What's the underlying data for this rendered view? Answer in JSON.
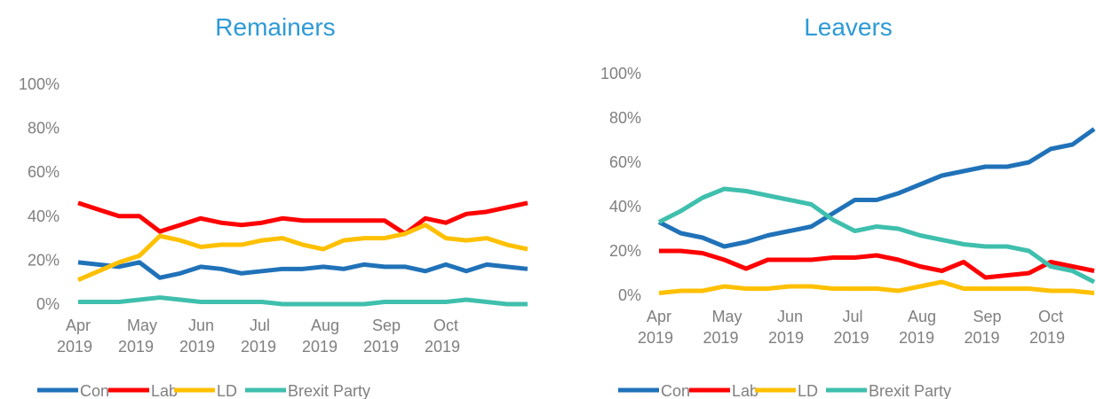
{
  "chart_data": [
    {
      "type": "line",
      "title": "Remainers",
      "categories": [
        "Apr 2019",
        null,
        null,
        "May 2019",
        null,
        null,
        "Jun 2019",
        null,
        null,
        "Jul 2019",
        null,
        null,
        "Aug 2019",
        null,
        null,
        "Sep 2019",
        null,
        null,
        "Oct 2019",
        null,
        null,
        null,
        null
      ],
      "ylim": [
        0,
        100
      ],
      "yticks": [
        {
          "value": 0,
          "label": "0%"
        },
        {
          "value": 20,
          "label": "20%"
        },
        {
          "value": 40,
          "label": "40%"
        },
        {
          "value": 60,
          "label": "60%"
        },
        {
          "value": 80,
          "label": "80%"
        },
        {
          "value": 100,
          "label": "100%"
        }
      ],
      "legend": "bottom",
      "series": [
        {
          "name": "Con",
          "color": "#2072b8",
          "values": [
            19,
            18,
            17,
            19,
            12,
            14,
            17,
            16,
            14,
            15,
            16,
            16,
            17,
            16,
            18,
            17,
            17,
            15,
            18,
            15,
            18,
            17,
            16
          ]
        },
        {
          "name": "Lab",
          "color": "#ff0000",
          "values": [
            46,
            43,
            40,
            40,
            33,
            36,
            39,
            37,
            36,
            37,
            39,
            38,
            38,
            38,
            38,
            38,
            32,
            39,
            37,
            41,
            42,
            44,
            46
          ]
        },
        {
          "name": "LD",
          "color": "#ffc000",
          "values": [
            11,
            15,
            19,
            22,
            31,
            29,
            26,
            27,
            27,
            29,
            30,
            27,
            25,
            29,
            30,
            30,
            32,
            36,
            30,
            29,
            30,
            27,
            25
          ]
        },
        {
          "name": "Brexit Party",
          "color": "#3fbfad",
          "values": [
            1,
            1,
            1,
            2,
            3,
            2,
            1,
            1,
            1,
            1,
            0,
            0,
            0,
            0,
            0,
            1,
            1,
            1,
            1,
            2,
            1,
            0,
            0
          ]
        }
      ]
    },
    {
      "type": "line",
      "title": "Leavers",
      "categories": [
        "Apr 2019",
        null,
        null,
        "May 2019",
        null,
        null,
        "Jun 2019",
        null,
        null,
        "Jul 2019",
        null,
        null,
        "Aug 2019",
        null,
        null,
        "Sep 2019",
        null,
        null,
        "Oct 2019",
        null,
        null
      ],
      "ylim": [
        0,
        100
      ],
      "yticks": [
        {
          "value": 0,
          "label": "0%"
        },
        {
          "value": 20,
          "label": "20%"
        },
        {
          "value": 40,
          "label": "40%"
        },
        {
          "value": 60,
          "label": "60%"
        },
        {
          "value": 80,
          "label": "80%"
        },
        {
          "value": 100,
          "label": "100%"
        }
      ],
      "legend": "bottom",
      "series": [
        {
          "name": "Con",
          "color": "#2072b8",
          "values": [
            33,
            28,
            26,
            22,
            24,
            27,
            29,
            31,
            37,
            43,
            43,
            46,
            50,
            54,
            56,
            58,
            58,
            60,
            66,
            68,
            75
          ]
        },
        {
          "name": "Lab",
          "color": "#ff0000",
          "values": [
            20,
            20,
            19,
            16,
            12,
            16,
            16,
            16,
            17,
            17,
            18,
            16,
            13,
            11,
            15,
            8,
            9,
            10,
            15,
            13,
            11
          ]
        },
        {
          "name": "LD",
          "color": "#ffc000",
          "values": [
            1,
            2,
            2,
            4,
            3,
            3,
            4,
            4,
            3,
            3,
            3,
            2,
            4,
            6,
            3,
            3,
            3,
            3,
            2,
            2,
            1
          ]
        },
        {
          "name": "Brexit Party",
          "color": "#3fbfad",
          "values": [
            33,
            38,
            44,
            48,
            47,
            45,
            43,
            41,
            34,
            29,
            31,
            30,
            27,
            25,
            23,
            22,
            22,
            20,
            13,
            11,
            6
          ]
        }
      ]
    }
  ]
}
